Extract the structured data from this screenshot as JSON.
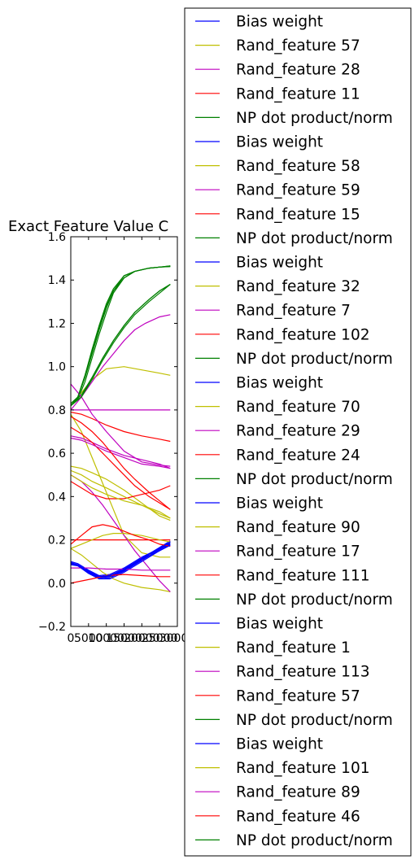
{
  "chart_data": {
    "type": "line",
    "title": "Exact Feature Value C",
    "xlabel": "",
    "ylabel": "",
    "xlim": [
      0,
      30000
    ],
    "ylim": [
      -0.2,
      1.6
    ],
    "xticks": [
      "0",
      "5000",
      "10000",
      "15000",
      "20000",
      "25000",
      "30000"
    ],
    "yticks": [
      "−0.2",
      "0.0",
      "0.2",
      "0.4",
      "0.6",
      "0.8",
      "1.0",
      "1.2",
      "1.4",
      "1.6"
    ],
    "grid": false,
    "legend_placement": "right, outside plot",
    "colors": {
      "Bias weight": "#0000ff",
      "Rand_feature": "#bfbf00",
      "Rand_feature_m": "#bf00bf",
      "Rand_feature_r": "#ff0000",
      "NP dot product/norm": "#008000"
    },
    "series": [
      {
        "name": "Bias weight",
        "color": "#0000ff",
        "x": [
          0,
          2000,
          5000,
          8000,
          11000,
          15000,
          20000,
          25000,
          28000
        ],
        "y": [
          0.09,
          0.085,
          0.05,
          0.025,
          0.03,
          0.06,
          0.11,
          0.16,
          0.19
        ]
      },
      {
        "name": "Rand_feature 57",
        "color": "#bfbf00",
        "x": [
          0,
          3000,
          6000,
          10000,
          15000,
          20000,
          25000,
          28000
        ],
        "y": [
          0.82,
          0.88,
          0.94,
          0.99,
          1.0,
          0.985,
          0.97,
          0.96
        ]
      },
      {
        "name": "Rand_feature 28",
        "color": "#bf00bf",
        "x": [
          0,
          5000,
          10000,
          15000,
          20000,
          25000,
          28000
        ],
        "y": [
          0.8,
          0.8,
          0.8,
          0.8,
          0.8,
          0.8,
          0.8
        ]
      },
      {
        "name": "Rand_feature 11",
        "color": "#ff0000",
        "x": [
          0,
          5000,
          10000,
          15000,
          20000,
          25000,
          28000
        ],
        "y": [
          0.2,
          0.2,
          0.2,
          0.2,
          0.2,
          0.2,
          0.2
        ]
      },
      {
        "name": "NP dot product/norm",
        "color": "#008000",
        "x": [
          0,
          3000,
          6000,
          9000,
          12000,
          15000,
          18000,
          22000,
          25000,
          28000
        ],
        "y": [
          0.82,
          0.87,
          0.95,
          1.04,
          1.12,
          1.19,
          1.25,
          1.31,
          1.35,
          1.38
        ]
      },
      {
        "name": "Bias weight",
        "color": "#0000ff",
        "x": [
          0,
          2000,
          5000,
          8000,
          11000,
          15000,
          20000,
          25000,
          28000
        ],
        "y": [
          0.095,
          0.08,
          0.045,
          0.02,
          0.025,
          0.055,
          0.105,
          0.155,
          0.185
        ]
      },
      {
        "name": "Rand_feature 58",
        "color": "#bfbf00",
        "x": [
          0,
          3000,
          6000,
          9000,
          12000,
          15000,
          20000,
          25000,
          28000
        ],
        "y": [
          0.78,
          0.7,
          0.58,
          0.46,
          0.34,
          0.22,
          0.14,
          0.12,
          0.12
        ]
      },
      {
        "name": "Rand_feature 59",
        "color": "#bf00bf",
        "x": [
          0,
          3000,
          6000,
          9000,
          12000,
          15000,
          18000,
          21000,
          25000,
          28000
        ],
        "y": [
          0.8,
          0.86,
          0.93,
          1.0,
          1.06,
          1.12,
          1.17,
          1.2,
          1.23,
          1.24
        ]
      },
      {
        "name": "Rand_feature 15",
        "color": "#ff0000",
        "x": [
          0,
          3000,
          6000,
          10000,
          15000,
          20000,
          25000,
          28000
        ],
        "y": [
          0.79,
          0.78,
          0.76,
          0.73,
          0.7,
          0.68,
          0.665,
          0.655
        ]
      },
      {
        "name": "NP dot product/norm",
        "color": "#008000",
        "x": [
          0,
          2000,
          4000,
          6000,
          8000,
          10000,
          12000,
          15000,
          18000,
          22000,
          25000,
          28000
        ],
        "y": [
          0.82,
          0.86,
          0.96,
          1.08,
          1.19,
          1.29,
          1.36,
          1.42,
          1.44,
          1.455,
          1.46,
          1.465
        ]
      },
      {
        "name": "Bias weight",
        "color": "#0000ff",
        "x": [
          0,
          2000,
          5000,
          8000,
          11000,
          15000,
          20000,
          25000,
          28000
        ],
        "y": [
          0.085,
          0.08,
          0.055,
          0.03,
          0.035,
          0.065,
          0.115,
          0.165,
          0.195
        ]
      },
      {
        "name": "Rand_feature 32",
        "color": "#bfbf00",
        "x": [
          0,
          3000,
          6000,
          10000,
          15000,
          20000,
          25000,
          28000
        ],
        "y": [
          0.54,
          0.53,
          0.51,
          0.48,
          0.43,
          0.37,
          0.31,
          0.29
        ]
      },
      {
        "name": "Rand_feature 7",
        "color": "#bf00bf",
        "x": [
          0,
          3000,
          6000,
          10000,
          15000,
          20000,
          25000,
          28000
        ],
        "y": [
          0.68,
          0.67,
          0.65,
          0.62,
          0.59,
          0.57,
          0.55,
          0.53
        ]
      },
      {
        "name": "Rand_feature 102",
        "color": "#ff0000",
        "x": [
          0,
          3000,
          6000,
          9000,
          12000,
          15000,
          18000,
          22000,
          25000,
          28000
        ],
        "y": [
          0.72,
          0.69,
          0.65,
          0.6,
          0.55,
          0.5,
          0.45,
          0.4,
          0.37,
          0.34
        ]
      },
      {
        "name": "NP dot product/norm",
        "color": "#008000",
        "x": [
          0,
          2000,
          4000,
          6000,
          8000,
          10000,
          12000,
          15000,
          18000,
          22000,
          25000,
          28000
        ],
        "y": [
          0.83,
          0.86,
          0.95,
          1.06,
          1.17,
          1.27,
          1.35,
          1.41,
          1.44,
          1.455,
          1.46,
          1.462
        ]
      },
      {
        "name": "Bias weight",
        "color": "#0000ff",
        "x": [
          0,
          2000,
          5000,
          8000,
          11000,
          15000,
          20000,
          25000,
          28000
        ],
        "y": [
          0.1,
          0.09,
          0.06,
          0.035,
          0.04,
          0.07,
          0.12,
          0.16,
          0.18
        ]
      },
      {
        "name": "Rand_feature 70",
        "color": "#bfbf00",
        "x": [
          0,
          3000,
          6000,
          9000,
          12000,
          15000,
          20000,
          25000,
          28000
        ],
        "y": [
          0.16,
          0.13,
          0.09,
          0.05,
          0.02,
          0.0,
          -0.02,
          -0.03,
          -0.04
        ]
      },
      {
        "name": "Rand_feature 29",
        "color": "#bf00bf",
        "x": [
          0,
          3000,
          6000,
          9000,
          12000,
          15000,
          18000,
          22000,
          25000,
          28000
        ],
        "y": [
          0.5,
          0.47,
          0.42,
          0.36,
          0.29,
          0.22,
          0.15,
          0.07,
          0.01,
          -0.04
        ]
      },
      {
        "name": "Rand_feature 24",
        "color": "#ff0000",
        "x": [
          0,
          3000,
          6000,
          10000,
          15000,
          20000,
          25000,
          28000
        ],
        "y": [
          0.47,
          0.44,
          0.41,
          0.39,
          0.39,
          0.41,
          0.43,
          0.45
        ]
      },
      {
        "name": "NP dot product/norm",
        "color": "#008000",
        "x": [
          0,
          3000,
          6000,
          9000,
          12000,
          15000,
          18000,
          22000,
          25000,
          28000
        ],
        "y": [
          0.82,
          0.86,
          0.94,
          1.03,
          1.11,
          1.18,
          1.24,
          1.3,
          1.34,
          1.38
        ]
      },
      {
        "name": "Bias weight",
        "color": "#0000ff",
        "x": [
          0,
          2000,
          5000,
          8000,
          11000,
          15000,
          20000,
          25000,
          28000
        ],
        "y": [
          0.09,
          0.085,
          0.05,
          0.02,
          0.02,
          0.05,
          0.1,
          0.15,
          0.18
        ]
      },
      {
        "name": "Rand_feature 90",
        "color": "#bfbf00",
        "x": [
          0,
          3000,
          6000,
          9000,
          12000,
          15000,
          20000,
          25000,
          28000
        ],
        "y": [
          0.16,
          0.18,
          0.2,
          0.22,
          0.23,
          0.23,
          0.22,
          0.2,
          0.19
        ]
      },
      {
        "name": "Rand_feature 17",
        "color": "#bf00bf",
        "x": [
          0,
          5000,
          10000,
          15000,
          20000,
          25000,
          28000
        ],
        "y": [
          0.07,
          0.07,
          0.065,
          0.065,
          0.06,
          0.06,
          0.06
        ]
      },
      {
        "name": "Rand_feature 111",
        "color": "#ff0000",
        "x": [
          0,
          3000,
          6000,
          9000,
          12000,
          15000,
          18000,
          22000,
          25000,
          28000
        ],
        "y": [
          0.18,
          0.22,
          0.26,
          0.27,
          0.26,
          0.24,
          0.22,
          0.2,
          0.18,
          0.17
        ]
      },
      {
        "name": "NP dot product/norm",
        "color": "#008000",
        "x": [
          0,
          2000,
          4000,
          6000,
          8000,
          10000,
          12000,
          15000,
          18000,
          22000,
          25000,
          28000
        ],
        "y": [
          0.82,
          0.85,
          0.93,
          1.04,
          1.15,
          1.25,
          1.34,
          1.41,
          1.44,
          1.455,
          1.46,
          1.465
        ]
      },
      {
        "name": "Bias weight",
        "color": "#0000ff",
        "x": [
          0,
          2000,
          5000,
          8000,
          11000,
          15000,
          20000,
          25000,
          28000
        ],
        "y": [
          0.095,
          0.085,
          0.055,
          0.03,
          0.03,
          0.06,
          0.11,
          0.15,
          0.175
        ]
      },
      {
        "name": "Rand_feature 1",
        "color": "#bfbf00",
        "x": [
          0,
          3000,
          6000,
          10000,
          15000,
          20000,
          25000,
          28000
        ],
        "y": [
          0.5,
          0.47,
          0.44,
          0.41,
          0.38,
          0.36,
          0.33,
          0.3
        ]
      },
      {
        "name": "Rand_feature 113",
        "color": "#bf00bf",
        "x": [
          0,
          3000,
          6000,
          10000,
          15000,
          20000,
          25000,
          28000
        ],
        "y": [
          0.92,
          0.86,
          0.78,
          0.7,
          0.61,
          0.56,
          0.545,
          0.54
        ]
      },
      {
        "name": "Rand_feature 57",
        "color": "#ff0000",
        "x": [
          0,
          3000,
          6000,
          10000,
          15000,
          20000,
          25000,
          28000
        ],
        "y": [
          0.0,
          0.01,
          0.02,
          0.035,
          0.04,
          0.035,
          0.03,
          0.03
        ]
      },
      {
        "name": "NP dot product/norm",
        "color": "#008000",
        "x": [
          0,
          3000,
          6000,
          9000,
          12000,
          15000,
          18000,
          22000,
          25000,
          28000
        ],
        "y": [
          0.82,
          0.86,
          0.95,
          1.04,
          1.12,
          1.19,
          1.25,
          1.31,
          1.35,
          1.38
        ]
      },
      {
        "name": "Bias weight",
        "color": "#0000ff",
        "x": [
          0,
          2000,
          5000,
          8000,
          11000,
          15000,
          20000,
          25000,
          28000
        ],
        "y": [
          0.09,
          0.08,
          0.05,
          0.03,
          0.035,
          0.065,
          0.115,
          0.16,
          0.19
        ]
      },
      {
        "name": "Rand_feature 101",
        "color": "#bfbf00",
        "x": [
          0,
          3000,
          6000,
          10000,
          15000,
          20000,
          25000,
          28000
        ],
        "y": [
          0.52,
          0.5,
          0.47,
          0.44,
          0.4,
          0.36,
          0.32,
          0.3
        ]
      },
      {
        "name": "Rand_feature 89",
        "color": "#bf00bf",
        "x": [
          0,
          3000,
          6000,
          10000,
          15000,
          20000,
          25000,
          28000
        ],
        "y": [
          0.67,
          0.66,
          0.64,
          0.61,
          0.58,
          0.55,
          0.54,
          0.53
        ]
      },
      {
        "name": "Rand_feature 46",
        "color": "#ff0000",
        "x": [
          0,
          3000,
          6000,
          9000,
          12000,
          15000,
          18000,
          22000,
          25000,
          28000
        ],
        "y": [
          0.77,
          0.74,
          0.7,
          0.65,
          0.59,
          0.53,
          0.48,
          0.42,
          0.38,
          0.34
        ]
      },
      {
        "name": "NP dot product/norm",
        "color": "#008000",
        "x": [
          0,
          2000,
          4000,
          6000,
          8000,
          10000,
          12000,
          15000,
          18000,
          22000,
          25000,
          28000
        ],
        "y": [
          0.82,
          0.86,
          0.96,
          1.07,
          1.18,
          1.28,
          1.35,
          1.42,
          1.44,
          1.455,
          1.46,
          1.463
        ]
      }
    ]
  }
}
